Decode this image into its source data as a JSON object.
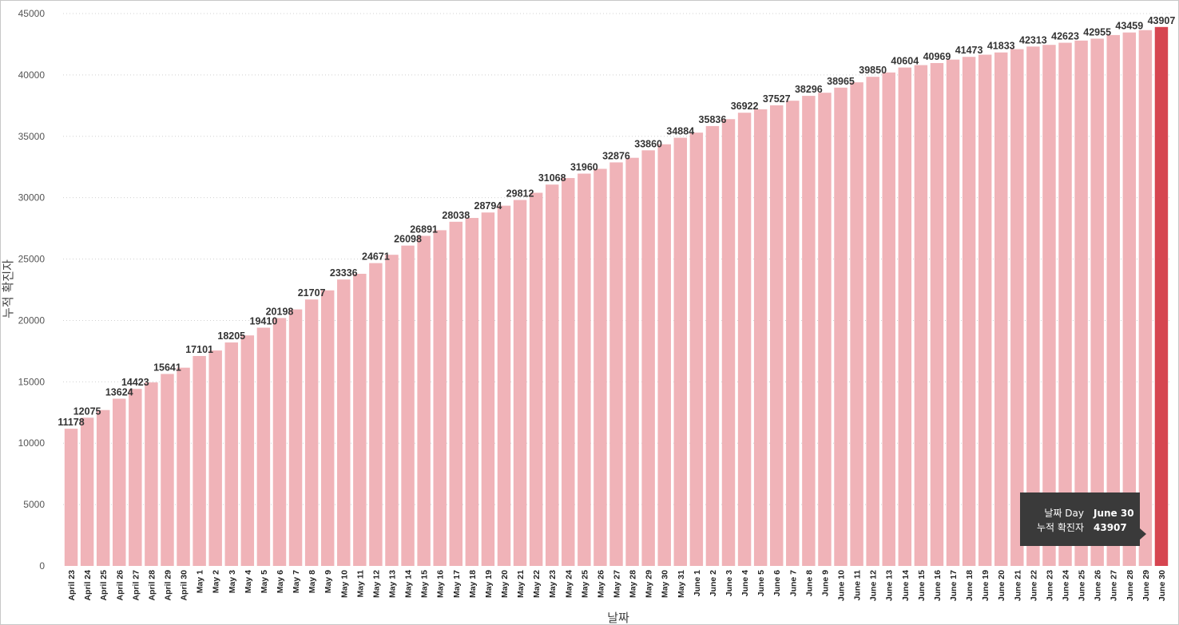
{
  "chart_data": {
    "type": "bar",
    "title": "",
    "xlabel": "날짜",
    "ylabel": "누적 확진자",
    "ylim": [
      0,
      45000
    ],
    "yticks": [
      0,
      5000,
      10000,
      15000,
      20000,
      25000,
      30000,
      35000,
      40000,
      45000
    ],
    "grid": true,
    "colors": {
      "bar": "#f0b3b8",
      "highlight": "#d64550",
      "grid": "#d0d0d0"
    },
    "highlight_category": "June 30",
    "categories": [
      "April 23",
      "April 24",
      "April 25",
      "April 26",
      "April 27",
      "April 28",
      "April 29",
      "April 30",
      "May 1",
      "May 2",
      "May 3",
      "May 4",
      "May 5",
      "May 6",
      "May 7",
      "May 8",
      "May 9",
      "May 10",
      "May 11",
      "May 12",
      "May 13",
      "May 14",
      "May 15",
      "May 16",
      "May 17",
      "May 18",
      "May 19",
      "May 20",
      "May 21",
      "May 22",
      "May 23",
      "May 24",
      "May 25",
      "May 26",
      "May 27",
      "May 28",
      "May 29",
      "May 30",
      "May 31",
      "June 1",
      "June 2",
      "June 3",
      "June 4",
      "June 5",
      "June 6",
      "June 7",
      "June 8",
      "June 9",
      "June 10",
      "June 11",
      "June 12",
      "June 13",
      "June 14",
      "June 15",
      "June 16",
      "June 17",
      "June 18",
      "June 19",
      "June 20",
      "June 21",
      "June 22",
      "June 23",
      "June 24",
      "June 25",
      "June 26",
      "June 27",
      "June 28",
      "June 29",
      "June 30"
    ],
    "values": [
      11178,
      12075,
      12700,
      13624,
      14423,
      14950,
      15641,
      16150,
      17101,
      17550,
      18205,
      18780,
      19410,
      20198,
      20900,
      21707,
      22450,
      23336,
      23800,
      24671,
      25350,
      26098,
      26891,
      27350,
      28038,
      28350,
      28794,
      29350,
      29812,
      30400,
      31068,
      31600,
      31960,
      32350,
      32876,
      33250,
      33860,
      34350,
      34884,
      35300,
      35836,
      36400,
      36922,
      37200,
      37527,
      37900,
      38296,
      38550,
      38965,
      39400,
      39850,
      40200,
      40604,
      40800,
      40969,
      41250,
      41473,
      41650,
      41833,
      42100,
      42313,
      42450,
      42623,
      42800,
      42955,
      43250,
      43459,
      43650,
      43907
    ],
    "data_labels": [
      {
        "category": "April 23",
        "text": "11178"
      },
      {
        "category": "April 24",
        "text": "12075"
      },
      {
        "category": "April 26",
        "text": "13624"
      },
      {
        "category": "April 27",
        "text": "14423"
      },
      {
        "category": "April 29",
        "text": "15641"
      },
      {
        "category": "May 1",
        "text": "17101"
      },
      {
        "category": "May 3",
        "text": "18205"
      },
      {
        "category": "May 5",
        "text": "19410"
      },
      {
        "category": "May 6",
        "text": "20198"
      },
      {
        "category": "May 8",
        "text": "21707"
      },
      {
        "category": "May 10",
        "text": "23336"
      },
      {
        "category": "May 12",
        "text": "24671"
      },
      {
        "category": "May 14",
        "text": "26098"
      },
      {
        "category": "May 15",
        "text": "26891"
      },
      {
        "category": "May 17",
        "text": "28038"
      },
      {
        "category": "May 19",
        "text": "28794"
      },
      {
        "category": "May 21",
        "text": "29812"
      },
      {
        "category": "May 23",
        "text": "31068"
      },
      {
        "category": "May 25",
        "text": "31960"
      },
      {
        "category": "May 27",
        "text": "32876"
      },
      {
        "category": "May 29",
        "text": "33860"
      },
      {
        "category": "May 31",
        "text": "34884"
      },
      {
        "category": "June 2",
        "text": "35836"
      },
      {
        "category": "June 4",
        "text": "36922"
      },
      {
        "category": "June 6",
        "text": "37527"
      },
      {
        "category": "June 8",
        "text": "38296"
      },
      {
        "category": "June 10",
        "text": "38965"
      },
      {
        "category": "June 12",
        "text": "39850"
      },
      {
        "category": "June 14",
        "text": "40604"
      },
      {
        "category": "June 16",
        "text": "40969"
      },
      {
        "category": "June 18",
        "text": "41473"
      },
      {
        "category": "June 20",
        "text": "41833"
      },
      {
        "category": "June 22",
        "text": "42313"
      },
      {
        "category": "June 24",
        "text": "42623"
      },
      {
        "category": "June 26",
        "text": "42955"
      },
      {
        "category": "June 28",
        "text": "43459"
      },
      {
        "category": "June 30",
        "text": "43907"
      }
    ]
  },
  "tooltip": {
    "rows": [
      {
        "label": "날짜 Day",
        "value": "June 30"
      },
      {
        "label": "누적 확진자",
        "value": "43907"
      }
    ]
  }
}
